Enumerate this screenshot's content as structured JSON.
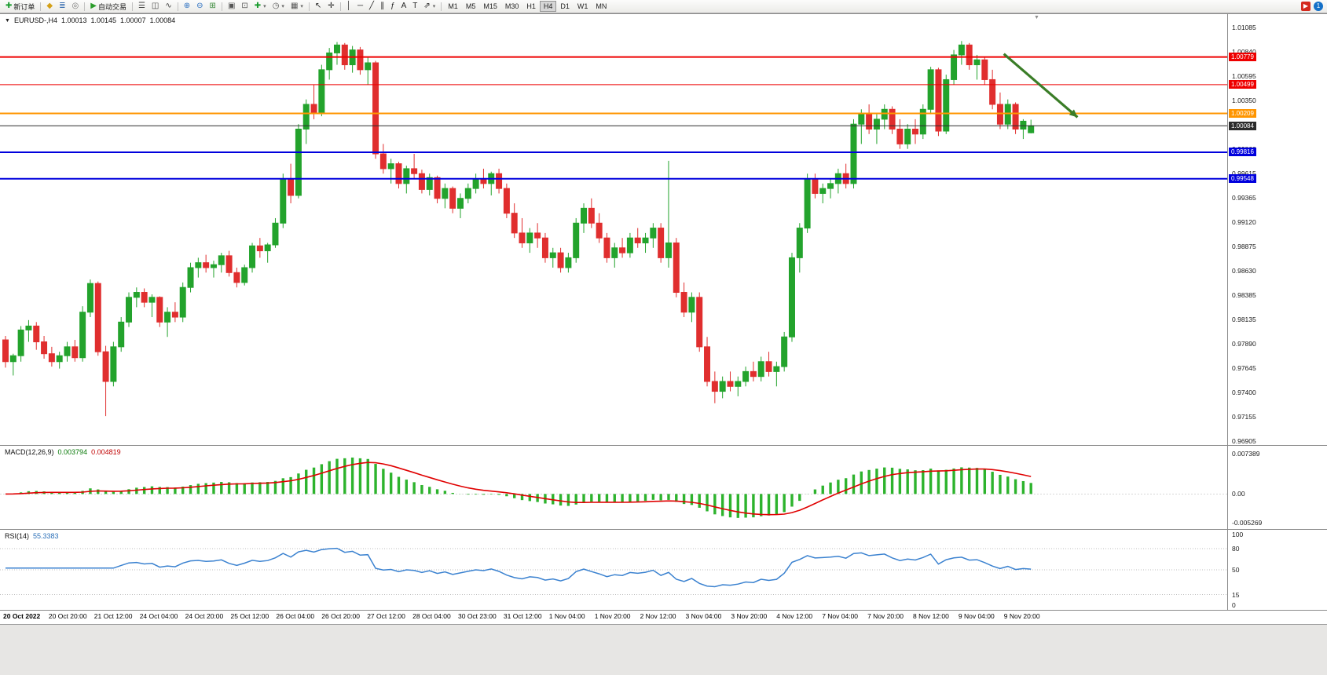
{
  "toolbar": {
    "notification_count": "1",
    "active_timeframe": "H4",
    "timeframes": [
      "M1",
      "M5",
      "M15",
      "M30",
      "H1",
      "H4",
      "D1",
      "W1",
      "MN"
    ],
    "items": [
      {
        "name": "new-order",
        "icon": "✚",
        "icon_color": "#1a9c2e",
        "label": "新订单"
      },
      {
        "sep": true
      },
      {
        "name": "market-watch",
        "icon": "◆",
        "icon_color": "#d4a017"
      },
      {
        "name": "depth-of-market",
        "icon": "≣",
        "icon_color": "#3a6fb0"
      },
      {
        "name": "scripts",
        "icon": "◎",
        "icon_color": "#777777"
      },
      {
        "sep": true
      },
      {
        "name": "autotrading",
        "icon": "▶",
        "icon_color": "#2a9c2a",
        "label": "自动交易"
      },
      {
        "sep": true
      },
      {
        "name": "chart-bars",
        "icon": "☰",
        "icon_color": "#444444"
      },
      {
        "name": "chart-candles",
        "icon": "◫",
        "icon_color": "#444444"
      },
      {
        "name": "chart-line",
        "icon": "∿",
        "icon_color": "#444444"
      },
      {
        "sep": true
      },
      {
        "name": "zoom-in",
        "icon": "⊕",
        "icon_color": "#2a6fc0"
      },
      {
        "name": "zoom-out",
        "icon": "⊖",
        "icon_color": "#2a6fc0"
      },
      {
        "name": "tile-windows",
        "icon": "⊞",
        "icon_color": "#3a8a3a"
      },
      {
        "sep": true
      },
      {
        "name": "arrange-windows",
        "icon": "▣",
        "icon_color": "#555555"
      },
      {
        "name": "cascade-windows",
        "icon": "⊡",
        "icon_color": "#555555"
      },
      {
        "name": "add-indicator",
        "icon": "✚",
        "icon_color": "#1a9c2e",
        "dropdown": true
      },
      {
        "name": "periods",
        "icon": "◷",
        "icon_color": "#555555",
        "dropdown": true
      },
      {
        "name": "templates",
        "icon": "▦",
        "icon_color": "#555555",
        "dropdown": true
      },
      {
        "sep": true
      },
      {
        "name": "cursor",
        "icon": "↖",
        "icon_color": "#222222"
      },
      {
        "name": "crosshair",
        "icon": "✛",
        "icon_color": "#222222"
      },
      {
        "sep": true
      },
      {
        "name": "vertical-line",
        "icon": "│",
        "icon_color": "#222222"
      },
      {
        "name": "horizontal-line",
        "icon": "─",
        "icon_color": "#222222"
      },
      {
        "name": "trend-line",
        "icon": "╱",
        "icon_color": "#222222"
      },
      {
        "name": "channel",
        "icon": "∥",
        "icon_color": "#222222"
      },
      {
        "name": "fibonacci",
        "icon": "ƒ",
        "icon_color": "#222222"
      },
      {
        "name": "text",
        "icon": "A",
        "icon_color": "#222222"
      },
      {
        "name": "text-label",
        "icon": "T",
        "icon_color": "#222222"
      },
      {
        "name": "arrows",
        "icon": "⇗",
        "icon_color": "#222222",
        "dropdown": true
      },
      {
        "sep": true
      }
    ]
  },
  "chart_header": {
    "marker": "▼",
    "symbol": "EURUSD-,H4",
    "open": "1.00013",
    "high": "1.00145",
    "low": "1.00007",
    "close": "1.00084"
  },
  "indicators": {
    "macd_name": "MACD(12,26,9)",
    "macd_value": "0.003794",
    "macd_signal": "0.004819",
    "rsi_name": "RSI(14)",
    "rsi_value": "55.3383"
  },
  "chart_data": {
    "type": "candlestick",
    "symbol": "EURUSD-",
    "timeframe": "H4",
    "up_color": "#23a32c",
    "down_color": "#e02e2e",
    "last_bar": {
      "open": 1.00013,
      "high": 1.00145,
      "low": 1.00007,
      "close": 1.00084
    },
    "price_axis": {
      "min": 0.96905,
      "max": 1.01085,
      "ticks": [
        "1.01085",
        "1.00840",
        "1.00595",
        "1.00350",
        "1.00105",
        "0.99860",
        "0.99615",
        "0.99365",
        "0.99120",
        "0.98875",
        "0.98630",
        "0.98385",
        "0.98135",
        "0.97890",
        "0.97645",
        "0.97400",
        "0.97155",
        "0.96905"
      ]
    },
    "time_axis": [
      "20 Oct 2022",
      "20 Oct 20:00",
      "21 Oct 12:00",
      "24 Oct 04:00",
      "24 Oct 20:00",
      "25 Oct 12:00",
      "26 Oct 04:00",
      "26 Oct 20:00",
      "27 Oct 12:00",
      "28 Oct 04:00",
      "30 Oct 23:00",
      "31 Oct 12:00",
      "1 Nov 04:00",
      "1 Nov 20:00",
      "2 Nov 12:00",
      "3 Nov 04:00",
      "3 Nov 20:00",
      "4 Nov 12:00",
      "7 Nov 04:00",
      "7 Nov 20:00",
      "8 Nov 12:00",
      "9 Nov 04:00",
      "9 Nov 20:00"
    ],
    "hlines": [
      {
        "price": 1.00779,
        "label": "1.00779",
        "color": "#ee0000",
        "width": 2
      },
      {
        "price": 1.00499,
        "label": "1.00499",
        "color": "#ee0000",
        "width": 1
      },
      {
        "price": 1.00209,
        "label": "1.00209",
        "color": "#ff9500",
        "width": 2
      },
      {
        "price": 1.00084,
        "label": "1.00084",
        "color": "#2b2b2b",
        "width": 1,
        "role": "bid"
      },
      {
        "price": 0.99816,
        "label": "0.99816",
        "color": "#0000dd",
        "width": 2
      },
      {
        "price": 0.99548,
        "label": "0.99548",
        "color": "#0000dd",
        "width": 2
      }
    ],
    "arrow": {
      "x_frac_start": 0.818,
      "price_start": 1.0081,
      "x_frac_end": 0.878,
      "price_end": 1.0017,
      "color": "#3a7d27"
    },
    "macd": {
      "params": [
        12,
        26,
        9
      ],
      "value": 0.003794,
      "signal_value": 0.004819,
      "hist_color": "#2db32d",
      "signal_color": "#e00000",
      "axis": {
        "max": 0.007389,
        "mid": 0.0,
        "min": -0.005269
      },
      "axis_ticks": [
        "0.007389",
        "0.00",
        "-0.005269"
      ]
    },
    "rsi": {
      "period": 14,
      "value": 55.3383,
      "line_color": "#3b82d0",
      "levels": [
        100,
        80,
        50,
        15,
        0
      ],
      "dotted_levels": [
        80,
        50,
        15
      ]
    },
    "candles_ohlc": [
      [
        0.9792,
        0.9796,
        0.9764,
        0.977
      ],
      [
        0.977,
        0.9778,
        0.9756,
        0.9776
      ],
      [
        0.9776,
        0.9806,
        0.977,
        0.9802
      ],
      [
        0.9802,
        0.9812,
        0.979,
        0.9806
      ],
      [
        0.9806,
        0.981,
        0.9782,
        0.979
      ],
      [
        0.979,
        0.9796,
        0.9773,
        0.9778
      ],
      [
        0.9778,
        0.9785,
        0.9765,
        0.977
      ],
      [
        0.977,
        0.978,
        0.9763,
        0.9776
      ],
      [
        0.9776,
        0.979,
        0.977,
        0.9785
      ],
      [
        0.9785,
        0.9792,
        0.977,
        0.9774
      ],
      [
        0.9774,
        0.9826,
        0.977,
        0.982
      ],
      [
        0.982,
        0.9853,
        0.9815,
        0.9849
      ],
      [
        0.9849,
        0.9851,
        0.9776,
        0.978
      ],
      [
        0.978,
        0.9786,
        0.9715,
        0.975
      ],
      [
        0.975,
        0.979,
        0.9745,
        0.9785
      ],
      [
        0.9785,
        0.9815,
        0.978,
        0.981
      ],
      [
        0.981,
        0.984,
        0.9805,
        0.9835
      ],
      [
        0.9835,
        0.9845,
        0.9825,
        0.984
      ],
      [
        0.984,
        0.9844,
        0.9825,
        0.983
      ],
      [
        0.983,
        0.9838,
        0.9815,
        0.9835
      ],
      [
        0.9835,
        0.9836,
        0.9805,
        0.981
      ],
      [
        0.981,
        0.9825,
        0.9795,
        0.982
      ],
      [
        0.982,
        0.983,
        0.981,
        0.9815
      ],
      [
        0.9815,
        0.985,
        0.981,
        0.9845
      ],
      [
        0.9845,
        0.987,
        0.984,
        0.9865
      ],
      [
        0.9865,
        0.9875,
        0.9855,
        0.987
      ],
      [
        0.987,
        0.9878,
        0.986,
        0.9865
      ],
      [
        0.9865,
        0.9872,
        0.9855,
        0.9868
      ],
      [
        0.9868,
        0.988,
        0.986,
        0.9877
      ],
      [
        0.9877,
        0.9882,
        0.9856,
        0.986
      ],
      [
        0.986,
        0.9865,
        0.9845,
        0.985
      ],
      [
        0.985,
        0.9868,
        0.9847,
        0.9865
      ],
      [
        0.9865,
        0.989,
        0.986,
        0.9887
      ],
      [
        0.9887,
        0.9895,
        0.9875,
        0.9882
      ],
      [
        0.9882,
        0.989,
        0.987,
        0.9888
      ],
      [
        0.9888,
        0.9915,
        0.9885,
        0.991
      ],
      [
        0.991,
        0.996,
        0.9905,
        0.9955
      ],
      [
        0.9955,
        0.997,
        0.993,
        0.9938
      ],
      [
        0.9938,
        1.001,
        0.9935,
        1.0005
      ],
      [
        1.0005,
        1.0035,
        0.999,
        1.003
      ],
      [
        1.003,
        1.005,
        1.0015,
        1.0021
      ],
      [
        1.0021,
        1.007,
        1.0018,
        1.0065
      ],
      [
        1.0065,
        1.0087,
        1.0055,
        1.0082
      ],
      [
        1.0082,
        1.0093,
        1.007,
        1.009
      ],
      [
        1.009,
        1.0092,
        1.0065,
        1.007
      ],
      [
        1.007,
        1.0089,
        1.0062,
        1.0085
      ],
      [
        1.0085,
        1.0088,
        1.006,
        1.0065
      ],
      [
        1.0065,
        1.0078,
        1.005,
        1.0072
      ],
      [
        1.0072,
        1.0074,
        0.9975,
        0.998
      ],
      [
        0.998,
        0.999,
        0.996,
        0.9965
      ],
      [
        0.9965,
        0.9975,
        0.995,
        0.997
      ],
      [
        0.997,
        0.9972,
        0.9945,
        0.995
      ],
      [
        0.995,
        0.9968,
        0.994,
        0.9965
      ],
      [
        0.9965,
        0.998,
        0.9955,
        0.996
      ],
      [
        0.996,
        0.9964,
        0.994,
        0.9944
      ],
      [
        0.9944,
        0.996,
        0.9938,
        0.9956
      ],
      [
        0.9956,
        0.9958,
        0.993,
        0.9935
      ],
      [
        0.9935,
        0.995,
        0.9925,
        0.9945
      ],
      [
        0.9945,
        0.9947,
        0.992,
        0.9925
      ],
      [
        0.9925,
        0.994,
        0.9915,
        0.9935
      ],
      [
        0.9935,
        0.995,
        0.993,
        0.9945
      ],
      [
        0.9945,
        0.996,
        0.994,
        0.9955
      ],
      [
        0.9955,
        0.9965,
        0.9945,
        0.995
      ],
      [
        0.995,
        0.9962,
        0.9938,
        0.996
      ],
      [
        0.996,
        0.9965,
        0.994,
        0.9945
      ],
      [
        0.9945,
        0.995,
        0.9915,
        0.992
      ],
      [
        0.992,
        0.993,
        0.9895,
        0.99
      ],
      [
        0.99,
        0.9915,
        0.9885,
        0.989
      ],
      [
        0.989,
        0.9905,
        0.988,
        0.99
      ],
      [
        0.99,
        0.991,
        0.9885,
        0.9895
      ],
      [
        0.9895,
        0.99,
        0.987,
        0.9875
      ],
      [
        0.9875,
        0.9885,
        0.9865,
        0.988
      ],
      [
        0.988,
        0.9885,
        0.986,
        0.9865
      ],
      [
        0.9865,
        0.988,
        0.986,
        0.9875
      ],
      [
        0.9875,
        0.9915,
        0.987,
        0.991
      ],
      [
        0.991,
        0.993,
        0.99,
        0.9925
      ],
      [
        0.9925,
        0.9935,
        0.9905,
        0.991
      ],
      [
        0.991,
        0.992,
        0.989,
        0.9895
      ],
      [
        0.9895,
        0.99,
        0.987,
        0.9875
      ],
      [
        0.9875,
        0.989,
        0.9865,
        0.9885
      ],
      [
        0.9885,
        0.9895,
        0.9875,
        0.988
      ],
      [
        0.988,
        0.99,
        0.9875,
        0.9895
      ],
      [
        0.9895,
        0.9905,
        0.9885,
        0.989
      ],
      [
        0.989,
        0.99,
        0.988,
        0.9895
      ],
      [
        0.9895,
        0.991,
        0.9885,
        0.9905
      ],
      [
        0.9905,
        0.991,
        0.987,
        0.9875
      ],
      [
        0.9875,
        0.9973,
        0.9865,
        0.989
      ],
      [
        0.989,
        0.9895,
        0.9835,
        0.984
      ],
      [
        0.984,
        0.985,
        0.9815,
        0.982
      ],
      [
        0.982,
        0.984,
        0.981,
        0.9835
      ],
      [
        0.9835,
        0.984,
        0.978,
        0.9785
      ],
      [
        0.9785,
        0.9795,
        0.9745,
        0.975
      ],
      [
        0.975,
        0.976,
        0.9728,
        0.974
      ],
      [
        0.974,
        0.9755,
        0.9733,
        0.975
      ],
      [
        0.975,
        0.976,
        0.974,
        0.9745
      ],
      [
        0.9745,
        0.9755,
        0.9735,
        0.975
      ],
      [
        0.975,
        0.9765,
        0.9745,
        0.976
      ],
      [
        0.976,
        0.977,
        0.975,
        0.9755
      ],
      [
        0.9755,
        0.9775,
        0.975,
        0.977
      ],
      [
        0.977,
        0.978,
        0.9755,
        0.976
      ],
      [
        0.976,
        0.977,
        0.9745,
        0.9765
      ],
      [
        0.9765,
        0.98,
        0.976,
        0.9795
      ],
      [
        0.9795,
        0.988,
        0.979,
        0.9875
      ],
      [
        0.9875,
        0.991,
        0.986,
        0.9905
      ],
      [
        0.9905,
        0.996,
        0.99,
        0.9955
      ],
      [
        0.9955,
        0.996,
        0.9935,
        0.994
      ],
      [
        0.994,
        0.995,
        0.993,
        0.9945
      ],
      [
        0.9945,
        0.9955,
        0.9935,
        0.995
      ],
      [
        0.995,
        0.9965,
        0.994,
        0.996
      ],
      [
        0.996,
        0.997,
        0.9945,
        0.995
      ],
      [
        0.995,
        1.0015,
        0.9945,
        1.001
      ],
      [
        1.001,
        1.0025,
        0.999,
        1.002
      ],
      [
        1.002,
        1.003,
        1.0,
        1.0005
      ],
      [
        1.0005,
        1.002,
        0.999,
        1.0015
      ],
      [
        1.0015,
        1.003,
        1.0005,
        1.0025
      ],
      [
        1.0025,
        1.0028,
        1.0,
        1.0005
      ],
      [
        1.0005,
        1.0015,
        0.9985,
        0.999
      ],
      [
        0.999,
        1.001,
        0.9985,
        1.0005
      ],
      [
        1.0005,
        1.0015,
        0.999,
        1.0
      ],
      [
        1.0,
        1.003,
        0.9995,
        1.0025
      ],
      [
        1.0025,
        1.0068,
        1.002,
        1.0065
      ],
      [
        1.0065,
        1.0067,
        0.9998,
        1.0003
      ],
      [
        1.0003,
        1.006,
        1.0,
        1.0055
      ],
      [
        1.0055,
        1.0085,
        1.005,
        1.008
      ],
      [
        1.008,
        1.0094,
        1.007,
        1.009
      ],
      [
        1.009,
        1.0092,
        1.0065,
        1.007
      ],
      [
        1.007,
        1.008,
        1.0055,
        1.0075
      ],
      [
        1.0075,
        1.0078,
        1.005,
        1.0055
      ],
      [
        1.0055,
        1.0065,
        1.0025,
        1.003
      ],
      [
        1.003,
        1.0042,
        1.0005,
        1.001
      ],
      [
        1.001,
        1.0035,
        1.0005,
        1.003
      ],
      [
        1.003,
        1.0032,
        1.0,
        1.0005
      ],
      [
        1.0005,
        1.0015,
        0.9995,
        1.0013
      ],
      [
        1.00013,
        1.00145,
        1.00007,
        1.00084
      ]
    ]
  }
}
